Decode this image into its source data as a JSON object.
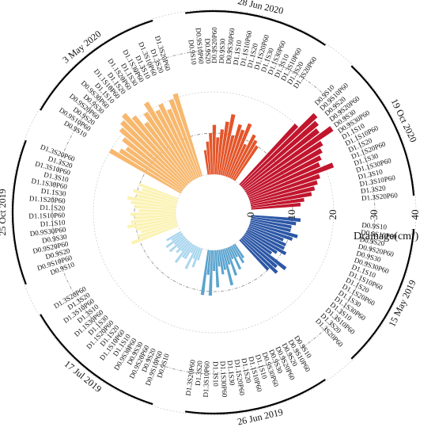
{
  "chart_data": {
    "type": "bar",
    "layout": "radial",
    "xlabel": "",
    "ylabel": "Drainage(cm³)",
    "ylabel_main": "Drainage(cm",
    "ylabel_sup": "3",
    "ylabel_tail": ")",
    "ylim": [
      0,
      40
    ],
    "yticks": [
      "0",
      "10",
      "20",
      "30",
      "40"
    ],
    "grid": true,
    "categories": [
      "D0.9S10",
      "D0.9S10P60",
      "D0.9S20",
      "D0.9S20P60",
      "D0.9S30",
      "D0.9S30P60",
      "D1.1S10",
      "D1.1S10P60",
      "D1.1S20",
      "D1.1S20P60",
      "D1.1S30",
      "D1.1S30P60",
      "D1.3S10",
      "D1.3S10P60",
      "D1.3S20",
      "D1.3S20P60"
    ],
    "series": [
      {
        "name": "15 May 2019",
        "color": "#2c57a6",
        "values": [
          12,
          11,
          10,
          10,
          12,
          11,
          9,
          10,
          10,
          11,
          9,
          8,
          13,
          11,
          12,
          10
        ]
      },
      {
        "name": "26 Jun 2019",
        "color": "#5ba4cf",
        "values": [
          4,
          5,
          3,
          6,
          3,
          7,
          4,
          9,
          5,
          6,
          4,
          9,
          5,
          11,
          6,
          11
        ]
      },
      {
        "name": "17 Jul 2019",
        "color": "#a9d6ee",
        "values": [
          3,
          5,
          3,
          6,
          2,
          4,
          4,
          6,
          3,
          4,
          3,
          5,
          3,
          5,
          3,
          4
        ]
      },
      {
        "name": "25 Oct 2019",
        "color": "#fbf3b4",
        "values": [
          12,
          10,
          9,
          10,
          12,
          11,
          10,
          11,
          9,
          10,
          11,
          12,
          10,
          11,
          9,
          10
        ]
      },
      {
        "name": "3 May 2020",
        "color": "#f7b86e",
        "values": [
          20,
          18,
          17,
          19,
          21,
          22,
          23,
          21,
          18,
          20,
          22,
          19,
          20,
          18,
          20,
          21
        ]
      },
      {
        "name": "28 Jun 2020",
        "color": "#e4552a",
        "values": [
          6,
          8,
          10,
          12,
          9,
          11,
          13,
          15,
          10,
          13,
          12,
          14,
          9,
          12,
          11,
          10
        ]
      },
      {
        "name": "19 Oct 2020",
        "color": "#c1162e",
        "values": [
          20,
          25,
          24,
          23,
          26,
          22,
          21,
          20,
          19,
          22,
          18,
          17,
          16,
          15,
          13,
          12
        ]
      }
    ]
  }
}
